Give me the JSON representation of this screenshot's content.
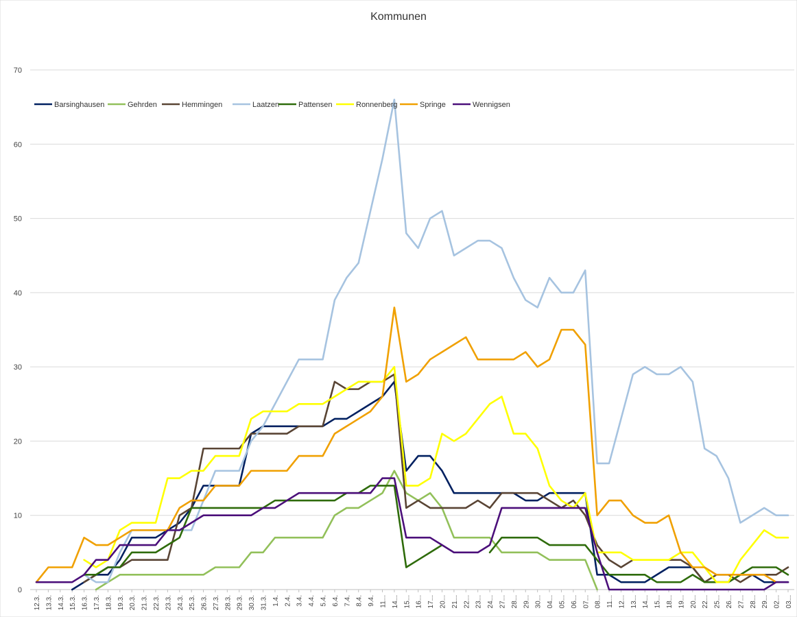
{
  "chart_data": {
    "type": "line",
    "title": "Kommunen",
    "xlabel": "",
    "ylabel": "",
    "ylim": [
      0,
      70
    ],
    "yticks": [
      0,
      10,
      20,
      30,
      40,
      50,
      60,
      70
    ],
    "grid": true,
    "legend_position": "top-left",
    "categories": [
      "12.3.",
      "13.3.",
      "14.3.",
      "15.3.",
      "16.3.",
      "17.3.",
      "18.3.",
      "19.3.",
      "20.3.",
      "21.3.",
      "22.3.",
      "23.3.",
      "24.3.",
      "25.3.",
      "26.3.",
      "27.3.",
      "28.3.",
      "29.3.",
      "30.3.",
      "31.3.",
      "1.4.",
      "2.4.",
      "3.4.",
      "4.4.",
      "5.4.",
      "6.4.",
      "7.4.",
      "8.4.",
      "9.4.",
      "11...",
      "14...",
      "15...",
      "16...",
      "17...",
      "20...",
      "21...",
      "22...",
      "23...",
      "24...",
      "27...",
      "28...",
      "29...",
      "30...",
      "04...",
      "05...",
      "06...",
      "07...",
      "08...",
      "11...",
      "12...",
      "13...",
      "14...",
      "15...",
      "18...",
      "19...",
      "20...",
      "22...",
      "25...",
      "26...",
      "27...",
      "28...",
      "29...",
      "02...",
      "03..."
    ],
    "series": [
      {
        "name": "Barsinghausen",
        "color": "#002060",
        "values": [
          null,
          null,
          null,
          0,
          1,
          2,
          2,
          4,
          7,
          7,
          7,
          8,
          9,
          11,
          14,
          14,
          14,
          14,
          21,
          22,
          22,
          22,
          22,
          22,
          22,
          23,
          23,
          24,
          25,
          26,
          28,
          16,
          18,
          18,
          16,
          13,
          13,
          13,
          13,
          13,
          13,
          12,
          12,
          13,
          13,
          13,
          13,
          2,
          2,
          1,
          1,
          1,
          2,
          3,
          3,
          3,
          1,
          1,
          1,
          2,
          2,
          1,
          1,
          1
        ]
      },
      {
        "name": "Gehrden",
        "color": "#92c05a",
        "values": [
          null,
          null,
          null,
          null,
          null,
          0,
          1,
          2,
          2,
          2,
          2,
          2,
          2,
          2,
          2,
          3,
          3,
          3,
          5,
          5,
          7,
          7,
          7,
          7,
          7,
          10,
          11,
          11,
          12,
          13,
          16,
          13,
          12,
          13,
          11,
          7,
          7,
          7,
          7,
          5,
          5,
          5,
          5,
          4,
          4,
          4,
          4,
          0,
          null,
          null,
          null,
          null,
          null,
          null,
          null,
          null,
          null,
          null,
          null,
          null,
          null,
          null,
          null,
          null
        ]
      },
      {
        "name": "Hemmingen",
        "color": "#594434",
        "values": [
          null,
          null,
          null,
          null,
          1,
          2,
          3,
          3,
          4,
          4,
          4,
          4,
          10,
          11,
          19,
          19,
          19,
          19,
          21,
          21,
          21,
          21,
          22,
          22,
          22,
          28,
          27,
          27,
          28,
          28,
          29,
          11,
          12,
          11,
          11,
          11,
          11,
          12,
          11,
          13,
          13,
          13,
          13,
          12,
          11,
          12,
          10,
          6,
          4,
          3,
          4,
          null,
          null,
          4,
          4,
          3,
          1,
          2,
          2,
          1,
          2,
          2,
          2,
          3
        ]
      },
      {
        "name": "Laatzen",
        "color": "#a6c3e0",
        "values": [
          null,
          null,
          null,
          null,
          2,
          1,
          1,
          5,
          8,
          8,
          8,
          8,
          8,
          8,
          12,
          16,
          16,
          16,
          20,
          22,
          25,
          28,
          31,
          31,
          31,
          39,
          42,
          44,
          51,
          58,
          66,
          48,
          46,
          50,
          51,
          45,
          46,
          47,
          47,
          46,
          42,
          39,
          38,
          42,
          40,
          40,
          43,
          17,
          17,
          23,
          29,
          30,
          29,
          29,
          30,
          28,
          19,
          18,
          15,
          9,
          10,
          11,
          10,
          10
        ]
      },
      {
        "name": "Pattensen",
        "color": "#2e6b0a",
        "values": [
          null,
          null,
          null,
          null,
          2,
          2,
          3,
          3,
          5,
          5,
          5,
          6,
          7,
          11,
          11,
          11,
          11,
          11,
          11,
          11,
          12,
          12,
          12,
          12,
          12,
          12,
          13,
          13,
          14,
          14,
          14,
          3,
          4,
          5,
          6,
          null,
          null,
          null,
          5,
          7,
          7,
          7,
          7,
          6,
          6,
          6,
          6,
          4,
          2,
          2,
          2,
          2,
          1,
          1,
          1,
          2,
          1,
          1,
          1,
          2,
          3,
          3,
          3,
          2
        ]
      },
      {
        "name": "Ronnenberg",
        "color": "#ffff00",
        "values": [
          null,
          null,
          null,
          null,
          4,
          3,
          4,
          8,
          9,
          9,
          9,
          15,
          15,
          16,
          16,
          18,
          18,
          18,
          23,
          24,
          24,
          24,
          25,
          25,
          25,
          26,
          27,
          28,
          28,
          28,
          30,
          14,
          14,
          15,
          21,
          20,
          21,
          23,
          25,
          26,
          21,
          21,
          19,
          14,
          12,
          11,
          13,
          5,
          5,
          5,
          4,
          4,
          4,
          4,
          5,
          5,
          3,
          1,
          1,
          4,
          6,
          8,
          7,
          7
        ]
      },
      {
        "name": "Springe",
        "color": "#f0a000",
        "values": [
          1,
          3,
          3,
          3,
          7,
          6,
          6,
          7,
          8,
          8,
          8,
          8,
          11,
          12,
          12,
          14,
          14,
          14,
          16,
          16,
          16,
          16,
          18,
          18,
          18,
          21,
          22,
          23,
          24,
          26,
          38,
          28,
          29,
          31,
          32,
          33,
          34,
          31,
          31,
          31,
          31,
          32,
          30,
          31,
          35,
          35,
          33,
          10,
          12,
          12,
          10,
          9,
          9,
          10,
          5,
          3,
          3,
          2,
          2,
          2,
          2,
          2,
          1,
          null
        ]
      },
      {
        "name": "Wennigsen",
        "color": "#4b0f7a",
        "values": [
          1,
          1,
          1,
          1,
          2,
          4,
          4,
          6,
          6,
          6,
          6,
          8,
          8,
          9,
          10,
          10,
          10,
          10,
          10,
          11,
          11,
          12,
          13,
          13,
          13,
          13,
          13,
          13,
          13,
          15,
          15,
          7,
          7,
          7,
          6,
          5,
          5,
          5,
          6,
          11,
          11,
          11,
          11,
          11,
          11,
          11,
          11,
          5,
          0,
          0,
          0,
          0,
          0,
          0,
          0,
          0,
          0,
          0,
          0,
          0,
          0,
          0,
          1,
          1
        ]
      }
    ]
  }
}
